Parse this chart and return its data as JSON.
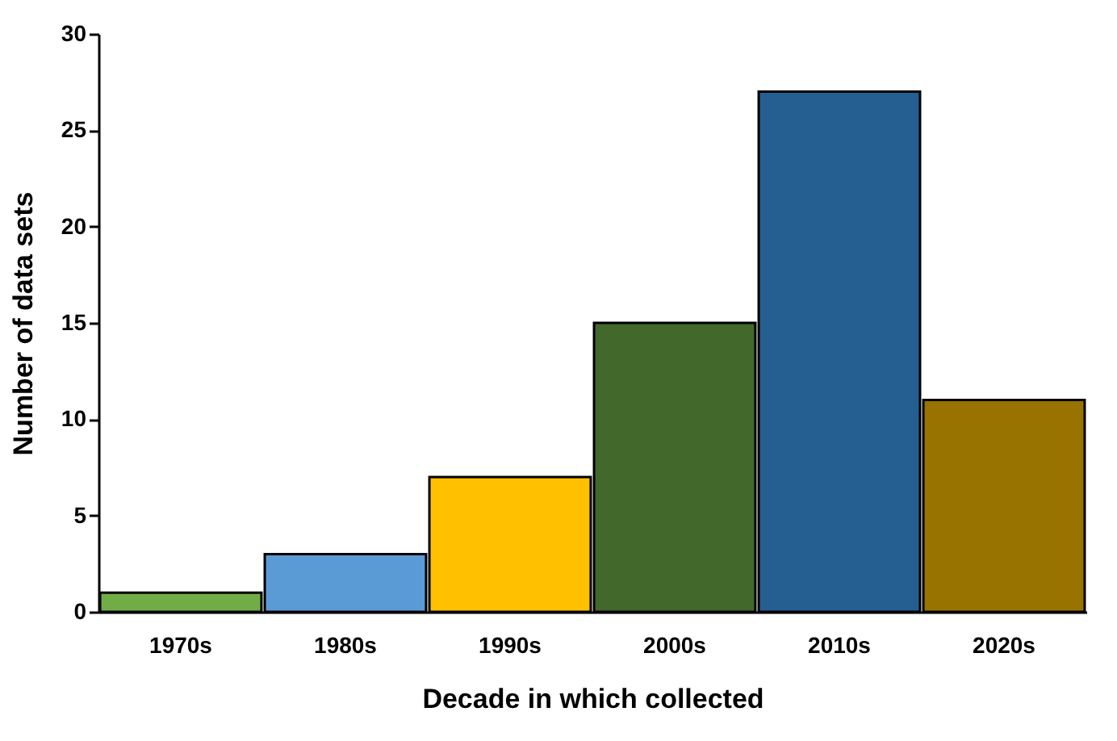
{
  "chart_data": {
    "type": "bar",
    "xlabel": "Decade in which collected",
    "ylabel": "Number of data sets",
    "categories": [
      "1970s",
      "1980s",
      "1990s",
      "2000s",
      "2010s",
      "2020s"
    ],
    "values": [
      1,
      3,
      7,
      15,
      27,
      11
    ],
    "colors": [
      "#70ad47",
      "#5b9bd5",
      "#ffc000",
      "#43682b",
      "#255e91",
      "#997300"
    ],
    "ylim": [
      0,
      30
    ],
    "yticks": [
      0,
      5,
      10,
      15,
      20,
      25,
      30
    ],
    "grid": false,
    "legend": false
  }
}
